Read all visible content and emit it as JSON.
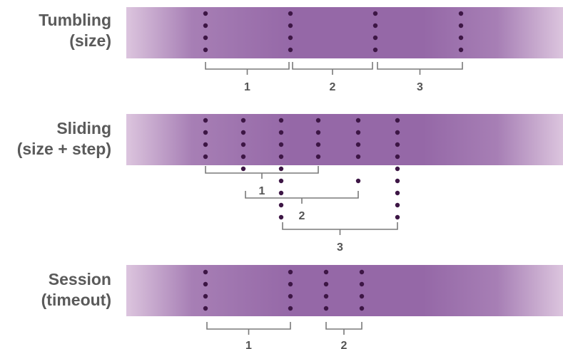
{
  "colors": {
    "band_mid": "#9568a7",
    "band_edge": "#dcc5de",
    "event_dot": "#3d1645",
    "bracket": "#7a7a7a",
    "text": "#5a5a5a"
  },
  "rows": [
    {
      "label_line1": "Tumbling",
      "label_line2": "(size)"
    },
    {
      "label_line1": "Sliding",
      "label_line2": "(size + step)"
    },
    {
      "label_line1": "Session",
      "label_line2": "(timeout)"
    }
  ],
  "window_labels": {
    "tumbling": [
      "1",
      "2",
      "3"
    ],
    "sliding": [
      "1",
      "2",
      "3"
    ],
    "session": [
      "1",
      "2"
    ]
  }
}
